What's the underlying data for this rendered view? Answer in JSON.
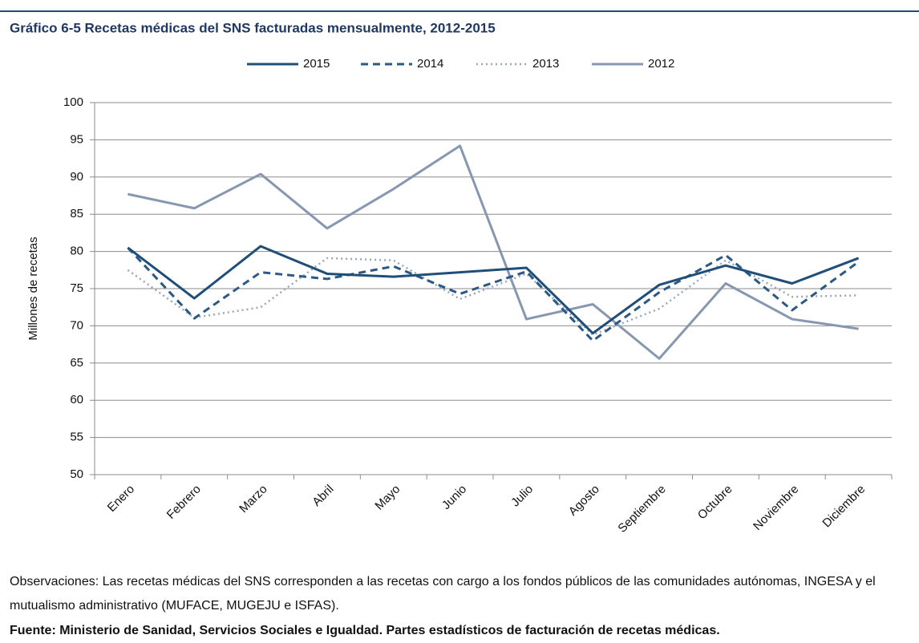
{
  "chart_data": {
    "type": "line",
    "title": "Gráfico 6-5 Recetas médicas del SNS facturadas mensualmente, 2012-2015",
    "ylabel": "Millones de recetas",
    "categories": [
      "Enero",
      "Febrero",
      "Marzo",
      "Abril",
      "Mayo",
      "Junio",
      "Julio",
      "Agosto",
      "Septiembre",
      "Octubre",
      "Noviembre",
      "Diciembre"
    ],
    "series": [
      {
        "name": "2015",
        "color": "#1f4e79",
        "dash": "solid",
        "values": [
          80.5,
          73.7,
          80.7,
          77.0,
          76.6,
          77.2,
          77.8,
          69.0,
          75.5,
          78.1,
          75.7,
          79.1
        ]
      },
      {
        "name": "2014",
        "color": "#2b5885",
        "dash": "dashed",
        "values": [
          80.5,
          71.0,
          77.2,
          76.3,
          78.0,
          74.3,
          77.3,
          68.0,
          74.5,
          79.5,
          72.1,
          78.6
        ]
      },
      {
        "name": "2013",
        "color": "#97a6bf",
        "dash": "dotted",
        "values": [
          77.5,
          71.1,
          72.5,
          79.1,
          78.8,
          73.6,
          77.0,
          68.8,
          72.3,
          78.8,
          73.9,
          74.1
        ]
      },
      {
        "name": "2012",
        "color": "#8797b1",
        "dash": "solid",
        "values": [
          87.7,
          85.8,
          90.4,
          83.1,
          88.4,
          94.2,
          70.9,
          72.9,
          65.6,
          75.7,
          70.9,
          69.6
        ]
      }
    ],
    "ylim": [
      50,
      100
    ],
    "yticks": [
      50,
      55,
      60,
      65,
      70,
      75,
      80,
      85,
      90,
      95,
      100
    ],
    "grid": true,
    "legend": "top",
    "notes": [
      "Observaciones: Las recetas médicas del SNS corresponden a las recetas con cargo a los fondos públicos de las comunidades autónomas, INGESA y el mutualismo administrativo (MUFACE, MUGEJU e ISFAS).",
      "Fuente: Ministerio de Sanidad, Servicios Sociales e Igualdad. Partes estadísticos de facturación de recetas médicas."
    ]
  }
}
